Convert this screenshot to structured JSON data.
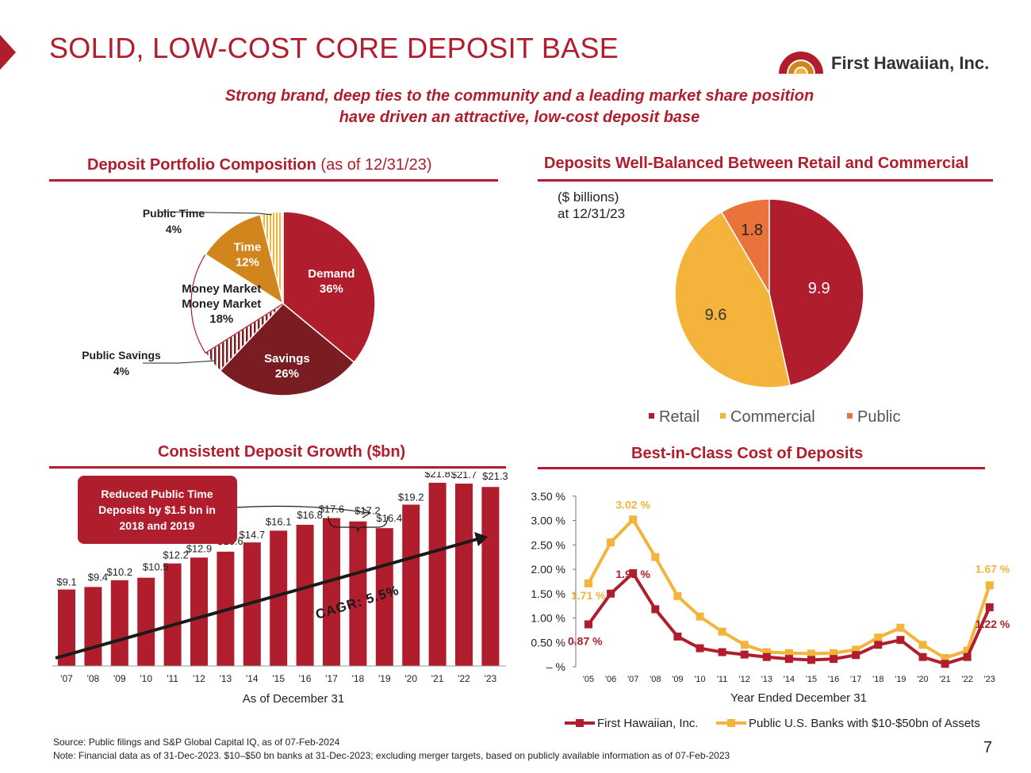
{
  "header": {
    "title": "SOLID, LOW-COST CORE DEPOSIT BASE",
    "logo_text": "First Hawaiian, Inc.",
    "subtitle_line1": "Strong brand, deep ties to the community and a leading market share position",
    "subtitle_line2": "have driven an attractive, low-cost deposit base"
  },
  "colors": {
    "brand_red": "#B01E2D",
    "dark_red": "#7A1D22",
    "orange": "#D1861D",
    "yellow": "#F4B43C",
    "public_orange": "#E9733A",
    "navy": "#1F2A44"
  },
  "sections": {
    "composition_title": "Deposit Portfolio Composition",
    "composition_suffix": " (as of 12/31/23)",
    "balance_title": "Deposits Well-Balanced Between Retail and Commercial",
    "balance_note_line1": "($ billions)",
    "balance_note_line2": "at 12/31/23",
    "growth_title": "Consistent Deposit Growth ($bn)",
    "cost_title": "Best-in-Class Cost of Deposits"
  },
  "chart_data": [
    {
      "type": "pie",
      "title": "Deposit Portfolio Composition",
      "slices": [
        {
          "name": "Demand",
          "value": 36,
          "label": "36%"
        },
        {
          "name": "Savings",
          "value": 26,
          "label": "26%"
        },
        {
          "name": "Public Savings",
          "value": 4,
          "label": "4%"
        },
        {
          "name": "Money Market",
          "value": 18,
          "label": "18%"
        },
        {
          "name": "Time",
          "value": 12,
          "label": "12%"
        },
        {
          "name": "Public Time",
          "value": 4,
          "label": "4%"
        }
      ]
    },
    {
      "type": "pie",
      "title": "Deposits Well-Balanced Between Retail and Commercial",
      "slices": [
        {
          "name": "Retail",
          "value": 9.9,
          "label": "9.9"
        },
        {
          "name": "Commercial",
          "value": 9.6,
          "label": "9.6"
        },
        {
          "name": "Public",
          "value": 1.8,
          "label": "1.8"
        }
      ],
      "legend": [
        "Retail",
        "Commercial",
        "Public"
      ],
      "legend_position": "bottom"
    },
    {
      "type": "bar",
      "title": "Consistent Deposit Growth ($bn)",
      "categories": [
        "'07",
        "'08",
        "'09",
        "'10",
        "'11",
        "'12",
        "'13",
        "'14",
        "'15",
        "'16",
        "'17",
        "'18",
        "'19",
        "'20",
        "'21",
        "'22",
        "'23"
      ],
      "values": [
        9.1,
        9.4,
        10.2,
        10.5,
        12.2,
        12.9,
        13.6,
        14.7,
        16.1,
        16.8,
        17.6,
        17.2,
        16.4,
        19.2,
        21.8,
        21.7,
        21.3
      ],
      "labels": [
        "$9.1",
        "$9.4",
        "$10.2",
        "$10.5",
        "$12.2",
        "$12.9",
        "$13.6",
        "$14.7",
        "$16.1",
        "$16.8",
        "$17.6",
        "$17.2",
        "$16.4",
        "$19.2",
        "$21.8",
        "$21.7",
        "$21.3"
      ],
      "xlabel": "As of December 31",
      "callout": "Reduced Public Time Deposits by $1.5 bn in 2018 and 2019",
      "annotation": "CAGR:  5.5%"
    },
    {
      "type": "line",
      "title": "Best-in-Class Cost of Deposits",
      "x": [
        "'05",
        "'06",
        "'07",
        "'08",
        "'09",
        "'10",
        "'11",
        "'12",
        "'13",
        "'14",
        "'15",
        "'16",
        "'17",
        "'18",
        "'19",
        "'20",
        "'21",
        "'22",
        "'23"
      ],
      "series": [
        {
          "name": "First Hawaiian, Inc.",
          "values": [
            0.87,
            1.5,
            1.92,
            1.18,
            0.62,
            0.38,
            0.3,
            0.25,
            0.2,
            0.16,
            0.14,
            0.16,
            0.24,
            0.45,
            0.55,
            0.2,
            0.06,
            0.2,
            1.22
          ]
        },
        {
          "name": "Public U.S. Banks with $10-$50bn of Assets",
          "values": [
            1.71,
            2.55,
            3.02,
            2.25,
            1.45,
            1.03,
            0.72,
            0.45,
            0.3,
            0.28,
            0.27,
            0.28,
            0.35,
            0.6,
            0.8,
            0.45,
            0.18,
            0.33,
            1.67
          ]
        }
      ],
      "point_labels": [
        {
          "series": 0,
          "index": 0,
          "text": "0.87 %"
        },
        {
          "series": 1,
          "index": 0,
          "text": "1.71 %"
        },
        {
          "series": 0,
          "index": 2,
          "text": "1.92 %"
        },
        {
          "series": 1,
          "index": 2,
          "text": "3.02 %"
        },
        {
          "series": 0,
          "index": 18,
          "text": "1.22 %"
        },
        {
          "series": 1,
          "index": 18,
          "text": "1.67 %"
        }
      ],
      "y_ticks": [
        "3.50 %",
        "3.00 %",
        "2.50 %",
        "2.00 %",
        "1.50 %",
        "1.00 %",
        "0.50 %",
        "– %"
      ],
      "ylim": [
        0,
        3.5
      ],
      "xlabel": "Year Ended December 31",
      "legend_position": "bottom"
    }
  ],
  "footer": {
    "source": "Source: Public filings and S&P Global Capital IQ, as of 07-Feb-2024",
    "note": "Note: Financial data as of 31-Dec-2023. $10–$50 bn banks at 31-Dec-2023; excluding merger targets, based on publicly available information as of 07-Feb-2023",
    "page": "7"
  }
}
